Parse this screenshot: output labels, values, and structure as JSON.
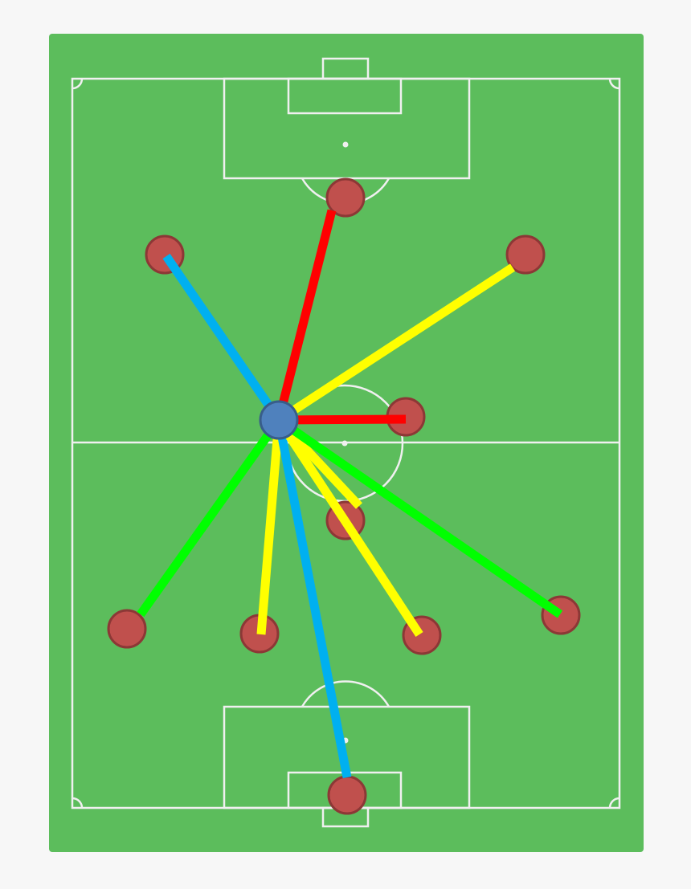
{
  "colors": {
    "background": "#f7f7f7",
    "pitch": "#5cbd5c",
    "pitch_lines": "#f0f0f0",
    "player_fill": "#c0504d",
    "player_stroke": "#8c3836",
    "ball_carrier_fill": "#4f81bd",
    "ball_carrier_stroke": "#385d8a"
  },
  "passes": [
    {
      "target": "forward-top",
      "color": "#ff0000"
    },
    {
      "target": "left-wing",
      "color": "#00b0f0"
    },
    {
      "target": "right-wing",
      "color": "#ffff00"
    },
    {
      "target": "center-mid",
      "color": "#ff0000"
    },
    {
      "target": "left-back",
      "color": "#00ff00"
    },
    {
      "target": "left-center-back",
      "color": "#ffff00"
    },
    {
      "target": "goalkeeper",
      "color": "#00b0f0"
    },
    {
      "target": "defensive-mid",
      "color": "#ffff00"
    },
    {
      "target": "right-center-back",
      "color": "#ffff00"
    },
    {
      "target": "right-back",
      "color": "#00ff00"
    }
  ]
}
